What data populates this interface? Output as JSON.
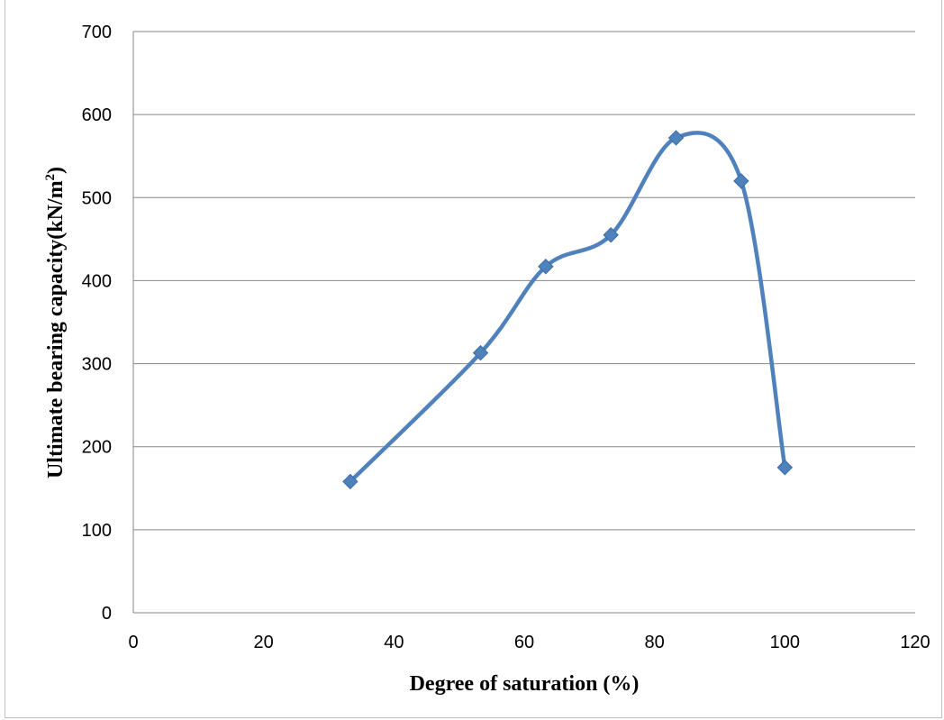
{
  "chart_data": {
    "type": "line",
    "xlabel": "Degree of saturation (%)",
    "ylabel_text": "Ultimate bearing capacity(kN/m",
    "ylabel_sup": "2",
    "ylabel_close": ")",
    "xlim": [
      0,
      120
    ],
    "ylim": [
      0,
      700
    ],
    "xticks": [
      0,
      20,
      40,
      60,
      80,
      100,
      120
    ],
    "yticks": [
      0,
      100,
      200,
      300,
      400,
      500,
      600,
      700
    ],
    "grid": "horizontal",
    "smooth": true,
    "marker": "diamond",
    "color": "#4f81bd",
    "series": [
      {
        "x": [
          33.3,
          53.3,
          63.3,
          73.3,
          83.3,
          93.3,
          100
        ],
        "y": [
          158,
          313,
          417,
          455,
          572,
          520,
          175
        ]
      }
    ]
  }
}
